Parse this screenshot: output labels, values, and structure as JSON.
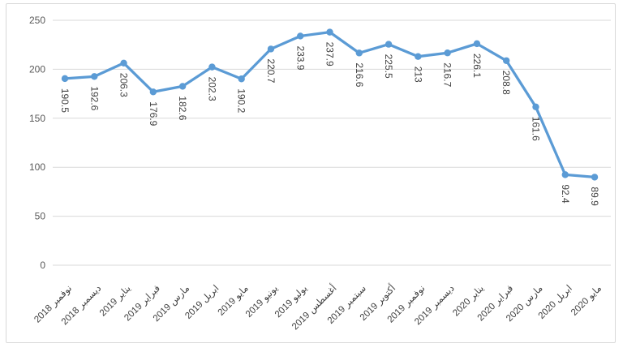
{
  "chart_data": {
    "type": "line",
    "title": "",
    "xlabel": "",
    "ylabel": "",
    "categories": [
      "نوفمبر 2018",
      "ديسمبر 2018",
      "يناير 2019",
      "فبراير 2019",
      "مارس 2019",
      "ابريل 2019",
      "مايو 2019",
      "يونيو 2019",
      "يوليو 2019",
      "أغسطس 2019",
      "سبتمبر 2019",
      "أكتوبر 2019",
      "نوفمبر 2019",
      "ديسمبر 2019",
      "يناير 2020",
      "فبراير 2020",
      "مارس 2020",
      "ابريل 2020",
      "مايو 2020"
    ],
    "values": [
      190.5,
      192.6,
      206.3,
      176.9,
      182.6,
      202.3,
      190.2,
      220.7,
      233.9,
      237.9,
      216.6,
      225.5,
      213,
      216.7,
      226.1,
      208.8,
      161.6,
      92.4,
      89.9
    ],
    "data_labels": [
      "190.5",
      "192.6",
      "206.3",
      "176.9",
      "182.6",
      "202.3",
      "190.2",
      "220.7",
      "233.9",
      "237.9",
      "216.6",
      "225.5",
      "213",
      "216.7",
      "226.1",
      "208.8",
      "161.6",
      "92.4",
      "89.9"
    ],
    "ylim": [
      0,
      250
    ],
    "yticks": [
      0,
      50,
      100,
      150,
      200,
      250
    ],
    "ytick_labels": [
      "0",
      "50",
      "100",
      "150",
      "200",
      "250"
    ],
    "grid": true,
    "legend": false,
    "marker": "circle",
    "data_label_rotation_deg": 90,
    "category_label_rotation_deg": -45
  },
  "style": {
    "line_color": "#5b9bd5",
    "marker_color": "#5b9bd5",
    "gridline_color": "#d9d9d9",
    "frame_border_color": "#d9d9d9",
    "ytick_label_color": "#595959",
    "data_label_color": "#404040",
    "category_label_color": "#404040",
    "background_color": "#ffffff"
  }
}
